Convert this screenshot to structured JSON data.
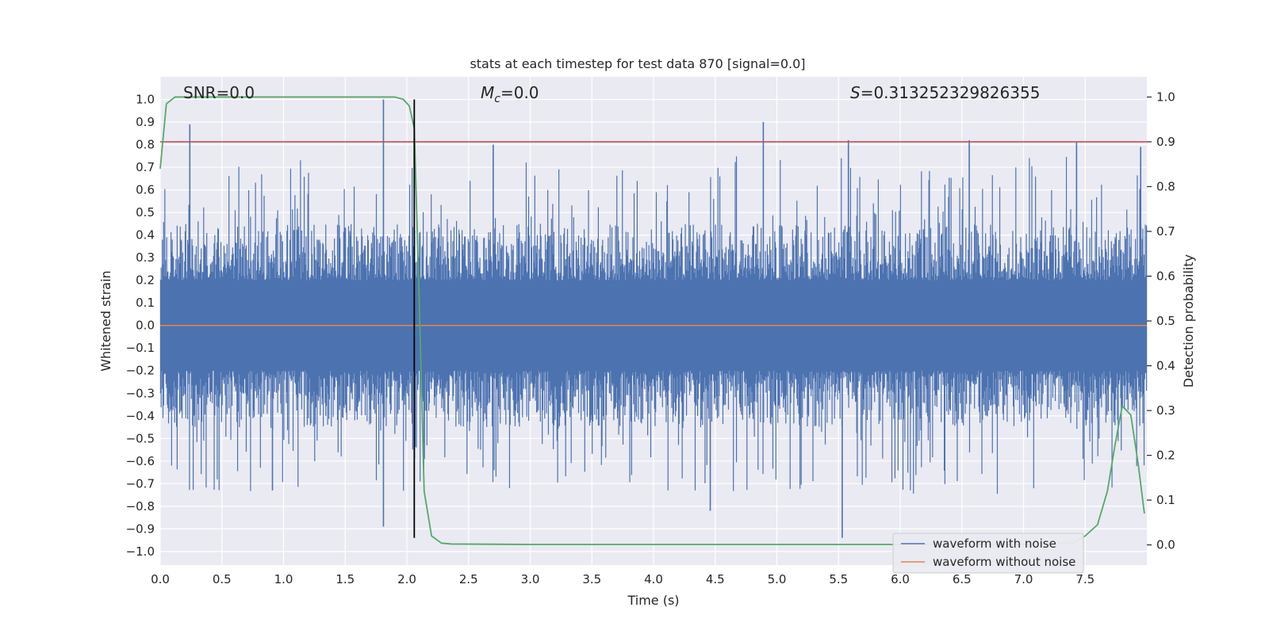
{
  "chart_data": {
    "type": "line",
    "title": "stats at each timestep for test data 870 [signal=0.0]",
    "xlabel": "Time (s)",
    "ylabel_left": "Whitened strain",
    "ylabel_right": "Detection probability",
    "xlim": [
      0.0,
      8.0
    ],
    "ylim_left": [
      -1.06,
      1.1
    ],
    "ylim_right": [
      -0.045,
      1.045
    ],
    "x_ticks": [
      0.0,
      0.5,
      1.0,
      1.5,
      2.0,
      2.5,
      3.0,
      3.5,
      4.0,
      4.5,
      5.0,
      5.5,
      6.0,
      6.5,
      7.0,
      7.5
    ],
    "x_tick_labels": [
      "0.0",
      "0.5",
      "1.0",
      "1.5",
      "2.0",
      "2.5",
      "3.0",
      "3.5",
      "4.0",
      "4.5",
      "5.0",
      "5.5",
      "6.0",
      "6.5",
      "7.0",
      "7.5"
    ],
    "y_ticks_left": [
      1.0,
      0.9,
      0.8,
      0.7,
      0.6,
      0.5,
      0.4,
      0.3,
      0.2,
      0.1,
      0.0,
      -0.1,
      -0.2,
      -0.3,
      -0.4,
      -0.5,
      -0.6,
      -0.7,
      -0.8,
      -0.9,
      -1.0
    ],
    "y_tick_labels_left": [
      "1.0",
      "0.9",
      "0.8",
      "0.7",
      "0.6",
      "0.5",
      "0.4",
      "0.3",
      "0.2",
      "0.1",
      "0.0",
      "−0.1",
      "−0.2",
      "−0.3",
      "−0.4",
      "−0.5",
      "−0.6",
      "−0.7",
      "−0.8",
      "−0.9",
      "−1.0"
    ],
    "y_ticks_right": [
      1.0,
      0.9,
      0.8,
      0.7,
      0.6,
      0.5,
      0.4,
      0.3,
      0.2,
      0.1,
      0.0
    ],
    "y_tick_labels_right": [
      "1.0",
      "0.9",
      "0.8",
      "0.7",
      "0.6",
      "0.5",
      "0.4",
      "0.3",
      "0.2",
      "0.1",
      "0.0"
    ],
    "grid": true,
    "legend_position": "lower right",
    "annotations": {
      "snr": "SNR=0.0",
      "mc_symbol": "M",
      "mc_sub": "c",
      "mc_value": "=0.0",
      "s_symbol": "S",
      "s_value": "=0.313252329826355"
    },
    "series": [
      {
        "name": "waveform with noise",
        "color": "#4c72b0",
        "axis": "left",
        "kind": "dense noise",
        "typical_range": [
          -0.45,
          0.45
        ],
        "spikes": [
          {
            "x": 0.24,
            "y": 0.89
          },
          {
            "x": 1.81,
            "y": 1.0
          },
          {
            "x": 1.81,
            "y": -0.89
          },
          {
            "x": 2.7,
            "y": 0.8
          },
          {
            "x": 4.89,
            "y": 0.9
          },
          {
            "x": 5.58,
            "y": 0.82
          },
          {
            "x": 5.53,
            "y": -0.94
          },
          {
            "x": 6.56,
            "y": 0.82
          },
          {
            "x": 7.43,
            "y": 0.81
          },
          {
            "x": 7.95,
            "y": 0.79
          },
          {
            "x": 4.46,
            "y": -0.82
          },
          {
            "x": 0.91,
            "y": -0.73
          }
        ]
      },
      {
        "name": "waveform without noise",
        "color": "#dd8452",
        "axis": "left",
        "x": [
          0.0,
          8.0
        ],
        "y": [
          0.0,
          0.0
        ]
      },
      {
        "name": "",
        "color": "#55a868",
        "axis": "right",
        "x": [
          0.0,
          0.05,
          0.12,
          0.3,
          1.0,
          1.5,
          1.9,
          1.97,
          2.02,
          2.06,
          2.1,
          2.14,
          2.2,
          2.28,
          2.36,
          3.0,
          5.0,
          7.0,
          7.4,
          7.5,
          7.6,
          7.68,
          7.74,
          7.8,
          7.87,
          7.93,
          7.98
        ],
        "y": [
          0.84,
          0.985,
          1.0,
          1.0,
          1.0,
          1.0,
          1.0,
          0.995,
          0.98,
          0.93,
          0.55,
          0.12,
          0.02,
          0.004,
          0.002,
          0.001,
          0.001,
          0.001,
          0.005,
          0.02,
          0.045,
          0.12,
          0.22,
          0.31,
          0.29,
          0.18,
          0.07
        ]
      }
    ],
    "threshold_right": 0.9,
    "threshold_color": "#c44e52",
    "vertical_marker_x": 2.06,
    "vertical_marker_color": "#000000"
  }
}
